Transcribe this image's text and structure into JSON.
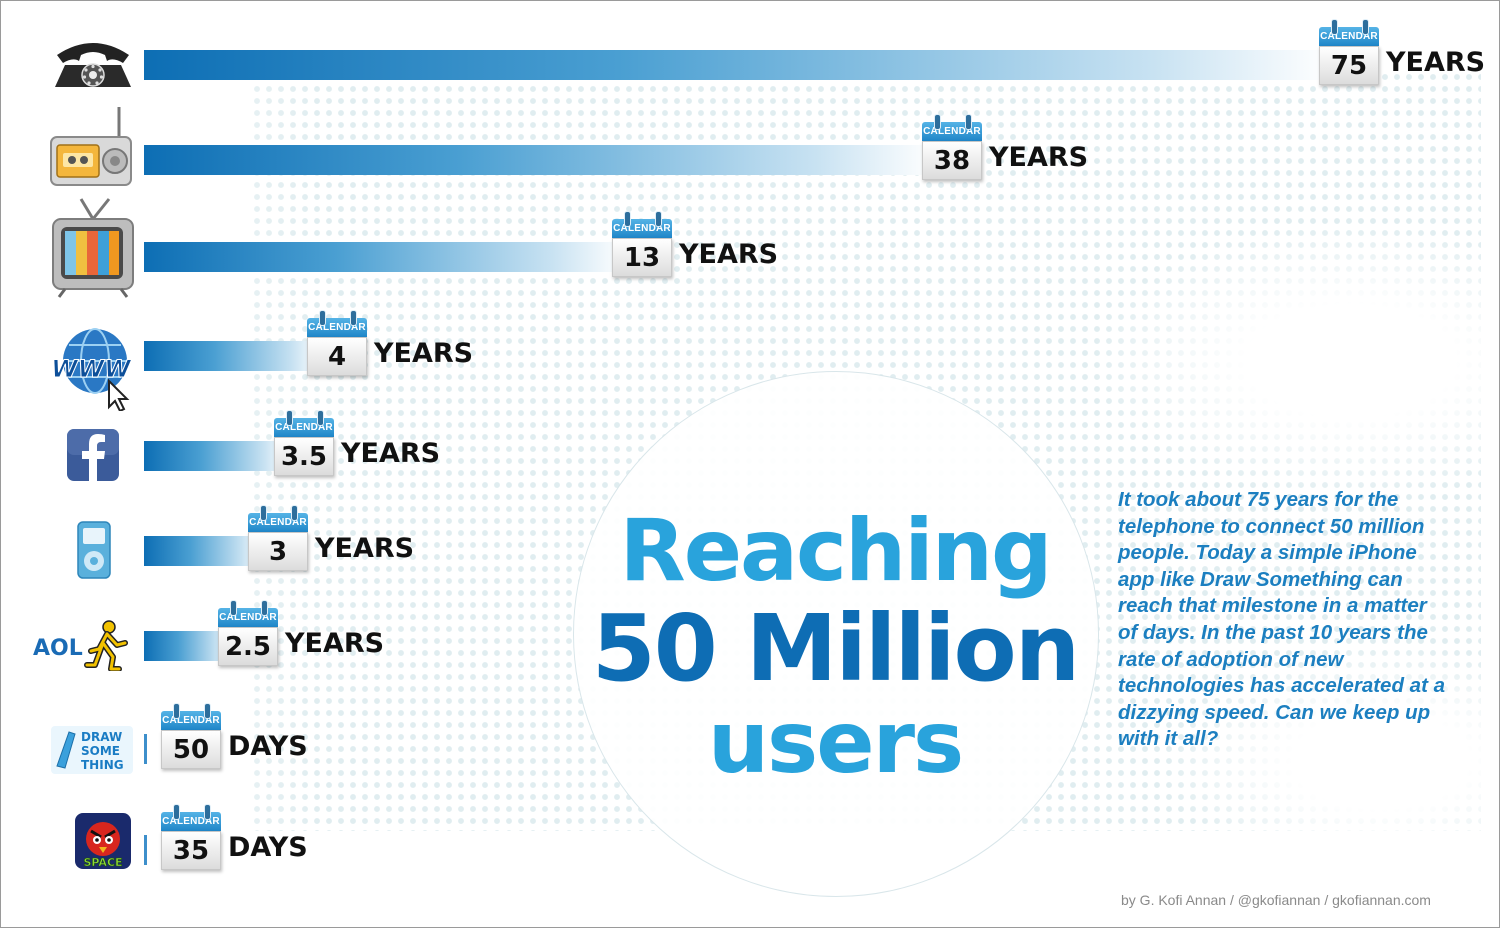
{
  "title": {
    "line1": "Reaching",
    "line2": "50 Million",
    "line3": "users"
  },
  "description": "It took about 75 years for the telephone to connect 50 million people. Today a simple iPhone app like Draw Something can reach that milestone in a matter of days. In the past 10 years the rate of adoption of new technologies has accelerated at a dizzying speed. Can we keep up with it all?",
  "credit": "by G. Kofi Annan / @gkofiannan / gkofiannan.com",
  "calendar_label": "CALENDAR",
  "icons": {
    "aol_text": "AOL",
    "draw_something_text": [
      "DRAW",
      "SOME",
      "THING"
    ],
    "angry_birds_text": "SPACE"
  },
  "colors": {
    "bar_dark": "#0d6eb4",
    "title_light": "#29a3dc",
    "title_dark": "#0e6db4",
    "text_blue": "#1c7fc0"
  },
  "chart_data": {
    "type": "bar",
    "orientation": "horizontal",
    "categories": [
      "telephone",
      "radio",
      "television",
      "www",
      "facebook",
      "ipod",
      "aol",
      "draw-something",
      "angry-birds-space"
    ],
    "category_icons": [
      "telephone-icon",
      "radio-icon",
      "television-icon",
      "www-icon",
      "facebook-icon",
      "ipod-icon",
      "aol-icon",
      "draw-something-icon",
      "angry-birds-space-icon"
    ],
    "values": [
      75,
      38,
      13,
      4,
      3.5,
      3,
      2.5,
      50,
      35
    ],
    "labels": [
      "75",
      "38",
      "13",
      "4",
      "3.5",
      "3",
      "2.5",
      "50",
      "35"
    ],
    "units": [
      "YEARS",
      "YEARS",
      "YEARS",
      "YEARS",
      "YEARS",
      "YEARS",
      "YEARS",
      "DAYS",
      "DAYS"
    ],
    "title": "Reaching 50 Million users"
  }
}
